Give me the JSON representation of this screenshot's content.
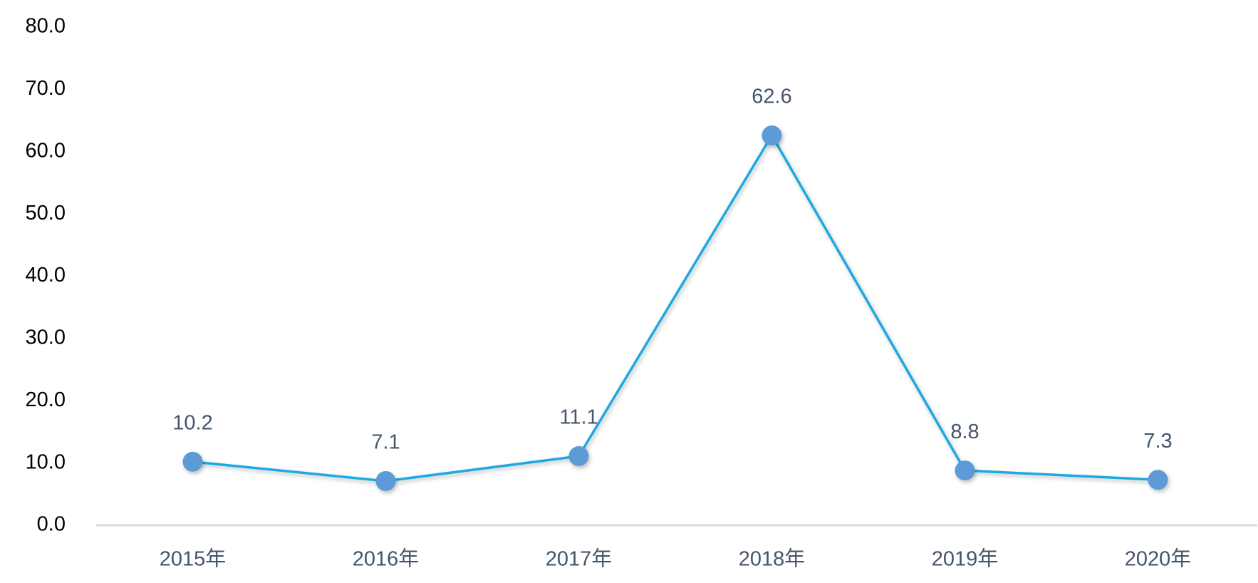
{
  "chart_data": {
    "type": "line",
    "categories": [
      "2015年",
      "2016年",
      "2017年",
      "2018年",
      "2019年",
      "2020年"
    ],
    "values": [
      10.2,
      7.1,
      11.1,
      62.6,
      8.8,
      7.3
    ],
    "value_labels": [
      "10.2",
      "7.1",
      "11.1",
      "62.6",
      "8.8",
      "7.3"
    ],
    "color": "#1ba9e3",
    "marker_color": "#5b9bd5",
    "ylim": [
      0,
      80
    ],
    "yticks": [
      {
        "value": 0,
        "label": "0.0"
      },
      {
        "value": 10,
        "label": "10.0"
      },
      {
        "value": 20,
        "label": "20.0"
      },
      {
        "value": 30,
        "label": "30.0"
      },
      {
        "value": 40,
        "label": "40.0"
      },
      {
        "value": 50,
        "label": "50.0"
      },
      {
        "value": 60,
        "label": "60.0"
      },
      {
        "value": 70,
        "label": "70.0"
      },
      {
        "value": 80,
        "label": "80.0"
      }
    ],
    "grid": false
  }
}
